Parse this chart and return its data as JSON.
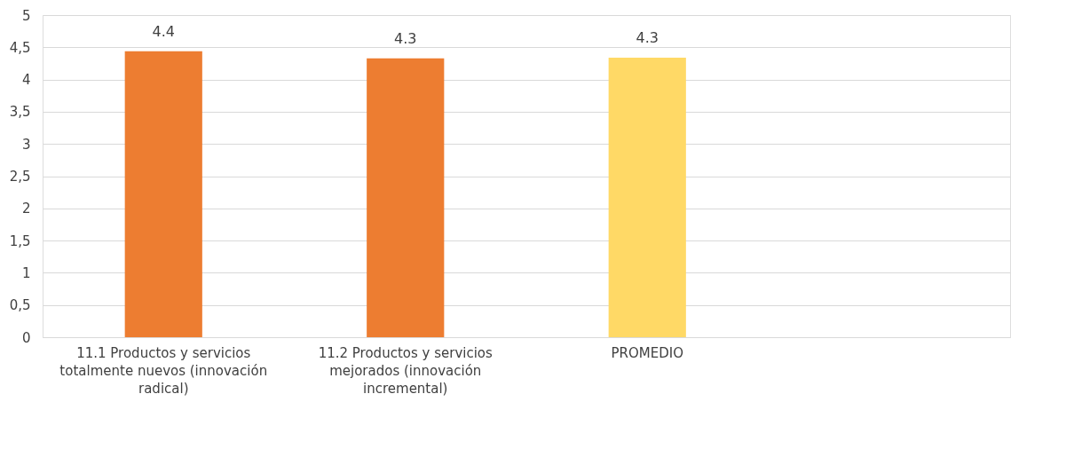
{
  "chart_data": {
    "type": "bar",
    "categories": [
      "11.1 Productos y servicios totalmente nuevos (innovación radical)",
      "11.2 Productos y servicios mejorados (innovación incremental)",
      "PROMEDIO",
      null
    ],
    "values": [
      4.44,
      4.33,
      4.34,
      null
    ],
    "colors": [
      "#ed7d31",
      "#ed7d31",
      "#ffd966",
      null
    ],
    "value_labels": [
      "4.4",
      "4.3",
      "4.3",
      null
    ],
    "ylim": [
      0,
      5
    ],
    "yticks": [
      0,
      {
        "value": 0.5,
        "label": "0,5"
      },
      1,
      {
        "value": 1.5,
        "label": "1,5"
      },
      2,
      {
        "value": 2.5,
        "label": "2,5"
      },
      3,
      {
        "value": 3.5,
        "label": "3,5"
      },
      4,
      {
        "value": 4.5,
        "label": "4,5"
      },
      5
    ],
    "grid": "y"
  }
}
